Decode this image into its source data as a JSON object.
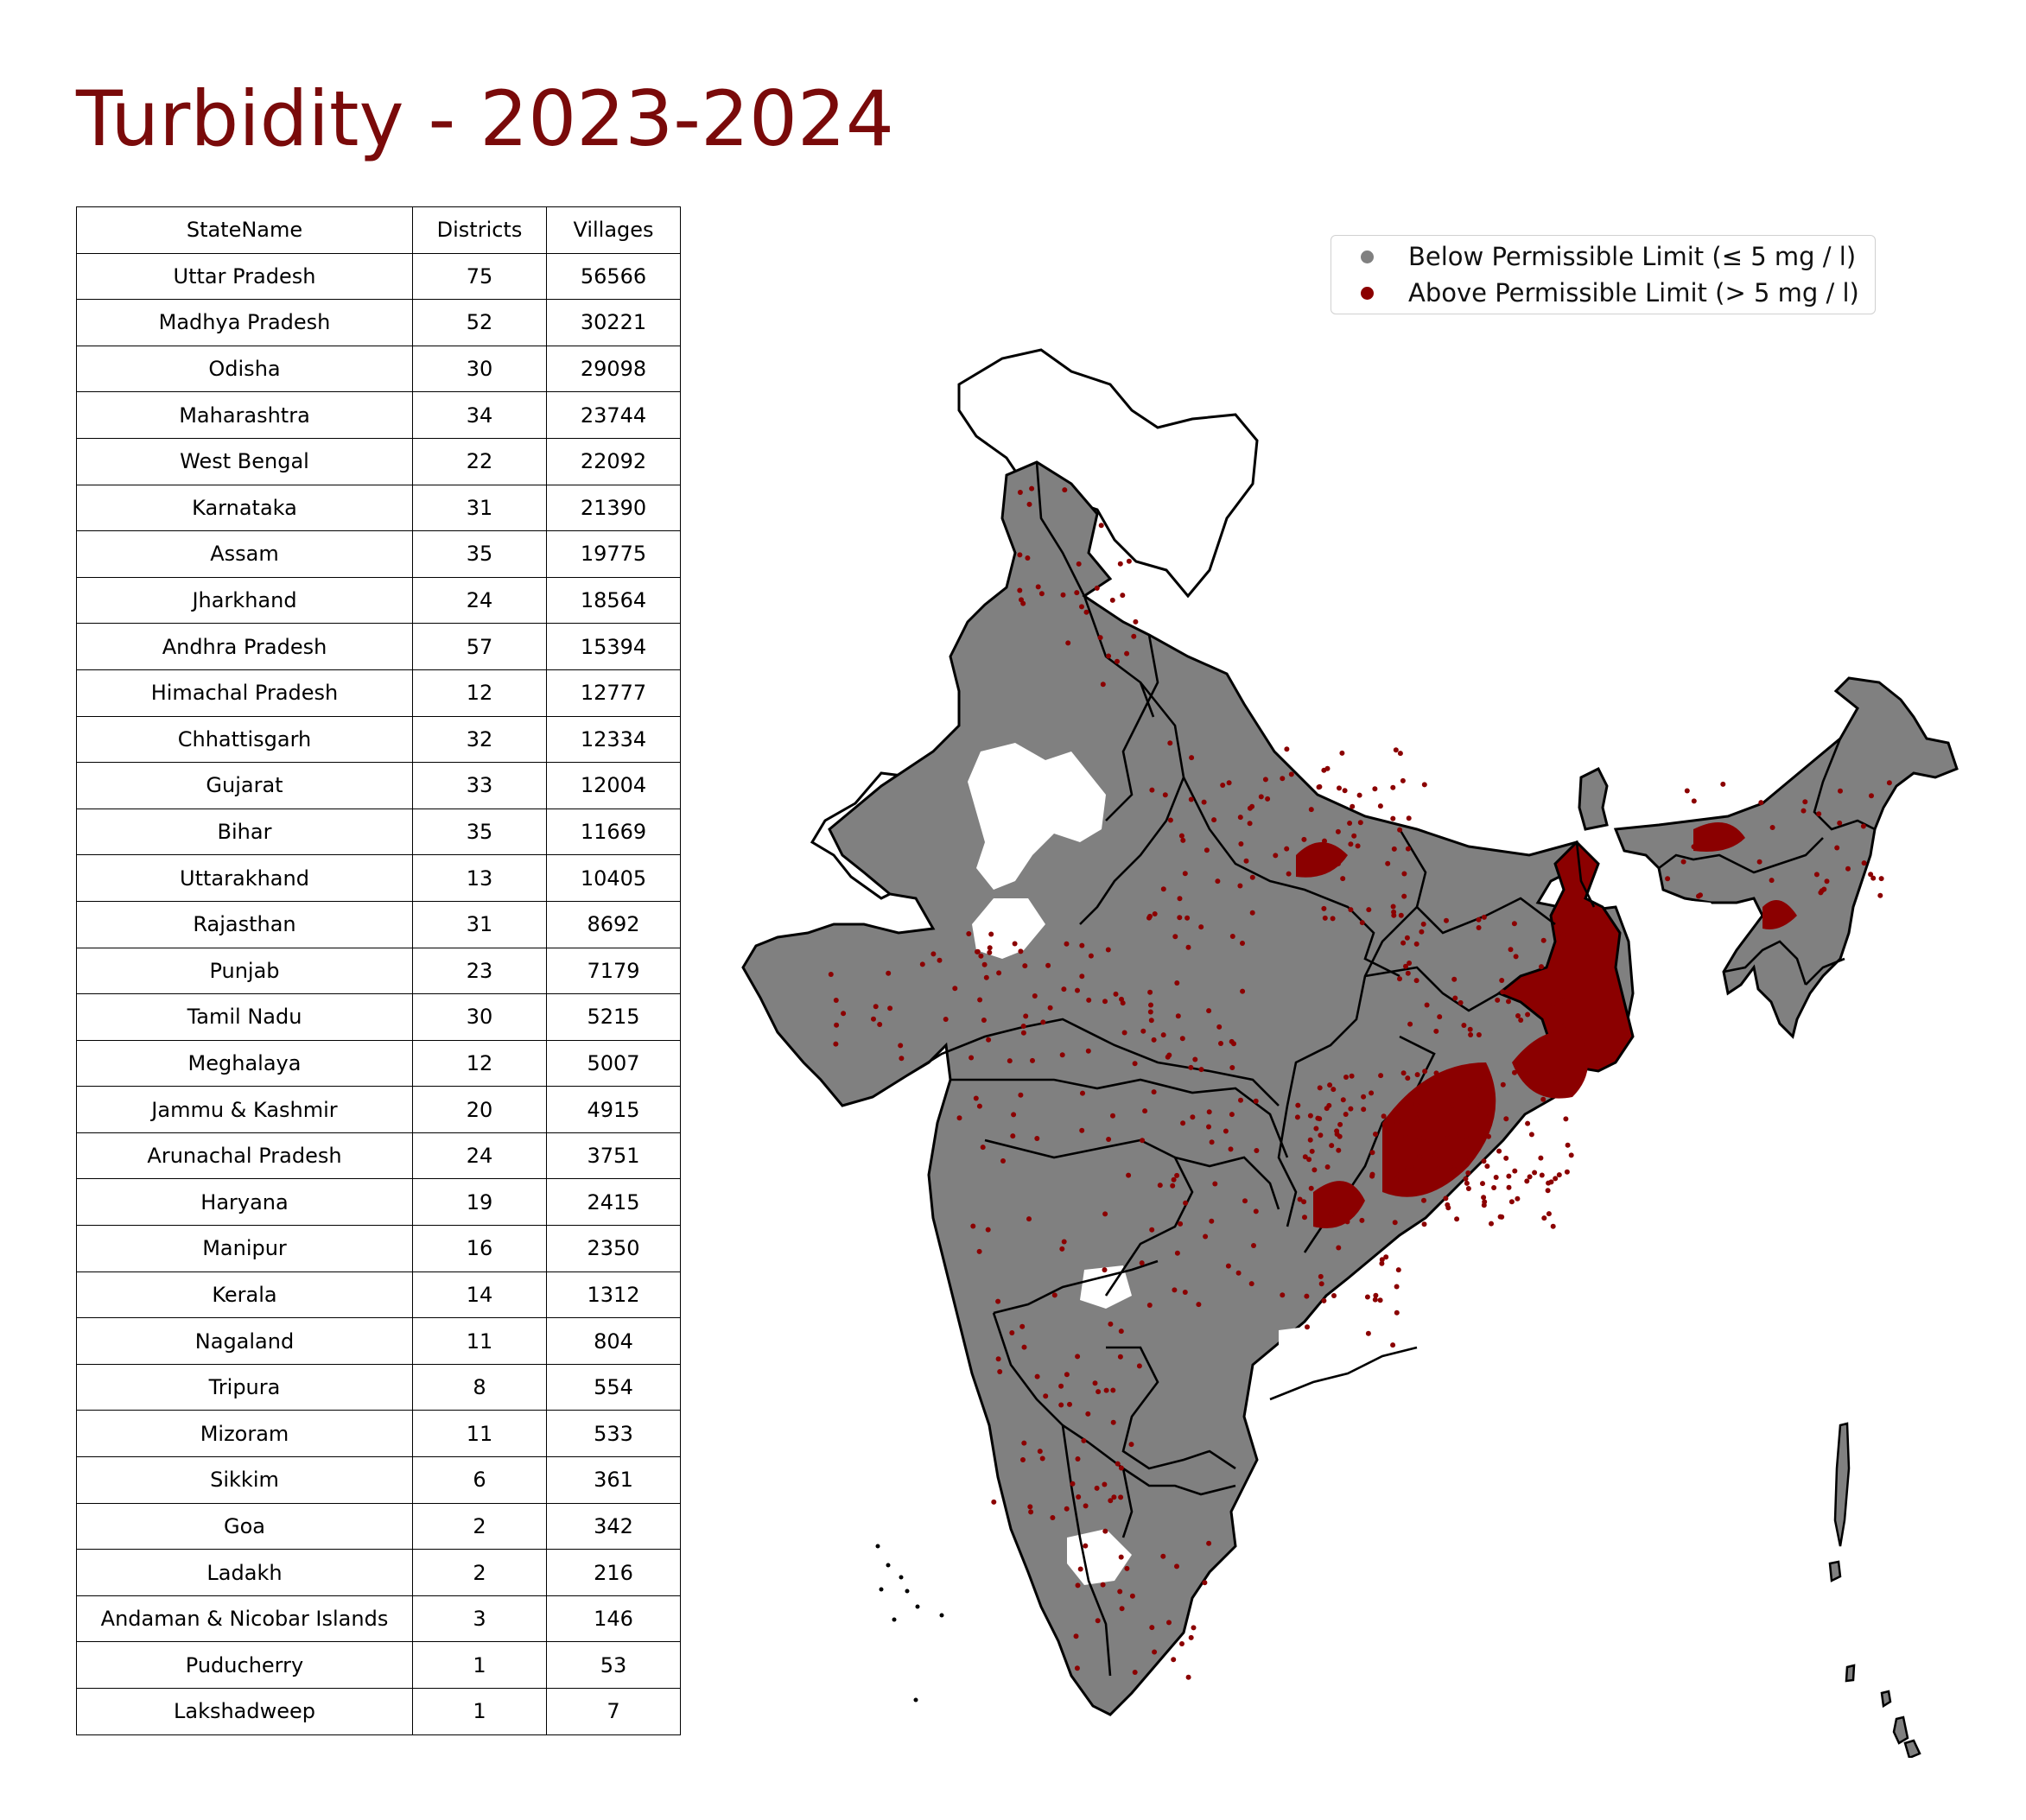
{
  "title": "Turbidity - 2023-2024",
  "colors": {
    "title": "#7a0a0a",
    "below": "#808080",
    "above": "#8b0000",
    "boundary": "#000000"
  },
  "table": {
    "headers": [
      "StateName",
      "Districts",
      "Villages"
    ],
    "rows": [
      [
        "Uttar Pradesh",
        "75",
        "56566"
      ],
      [
        "Madhya Pradesh",
        "52",
        "30221"
      ],
      [
        "Odisha",
        "30",
        "29098"
      ],
      [
        "Maharashtra",
        "34",
        "23744"
      ],
      [
        "West Bengal",
        "22",
        "22092"
      ],
      [
        "Karnataka",
        "31",
        "21390"
      ],
      [
        "Assam",
        "35",
        "19775"
      ],
      [
        "Jharkhand",
        "24",
        "18564"
      ],
      [
        "Andhra Pradesh",
        "57",
        "15394"
      ],
      [
        "Himachal Pradesh",
        "12",
        "12777"
      ],
      [
        "Chhattisgarh",
        "32",
        "12334"
      ],
      [
        "Gujarat",
        "33",
        "12004"
      ],
      [
        "Bihar",
        "35",
        "11669"
      ],
      [
        "Uttarakhand",
        "13",
        "10405"
      ],
      [
        "Rajasthan",
        "31",
        "8692"
      ],
      [
        "Punjab",
        "23",
        "7179"
      ],
      [
        "Tamil Nadu",
        "30",
        "5215"
      ],
      [
        "Meghalaya",
        "12",
        "5007"
      ],
      [
        "Jammu & Kashmir",
        "20",
        "4915"
      ],
      [
        "Arunachal Pradesh",
        "24",
        "3751"
      ],
      [
        "Haryana",
        "19",
        "2415"
      ],
      [
        "Manipur",
        "16",
        "2350"
      ],
      [
        "Kerala",
        "14",
        "1312"
      ],
      [
        "Nagaland",
        "11",
        "804"
      ],
      [
        "Tripura",
        "8",
        "554"
      ],
      [
        "Mizoram",
        "11",
        "533"
      ],
      [
        "Sikkim",
        "6",
        "361"
      ],
      [
        "Goa",
        "2",
        "342"
      ],
      [
        "Ladakh",
        "2",
        "216"
      ],
      [
        "Andaman & Nicobar Islands",
        "3",
        "146"
      ],
      [
        "Puducherry",
        "1",
        "53"
      ],
      [
        "Lakshadweep",
        "1",
        "7"
      ]
    ]
  },
  "legend": {
    "below_label": "Below Permissible Limit (≤ 5 mg / l)",
    "above_label": "Above Permissible Limit (> 5 mg / l)",
    "placement": "top-right"
  }
}
